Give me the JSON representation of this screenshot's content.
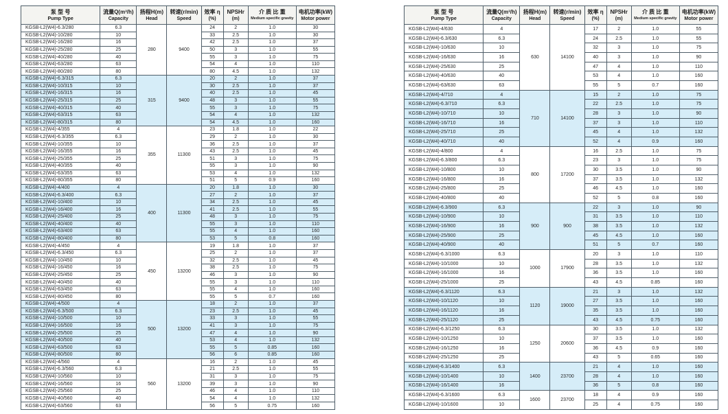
{
  "colors": {
    "shaded_row": "#d6edf8",
    "border": "#4e5d68",
    "header_bg": "#f4f4f1",
    "text": "#262626"
  },
  "columns": [
    {
      "zh": "泵 型 号",
      "en": "Pump Type"
    },
    {
      "zh": "流量Q(m³/h)",
      "en": "Capacity"
    },
    {
      "zh": "扬程H(m)",
      "en": "Head"
    },
    {
      "zh": "转速(r/min)",
      "en": "Speed"
    },
    {
      "zh": "效率 η",
      "en": "(%)"
    },
    {
      "zh": "NPSHr",
      "en": "(m)"
    },
    {
      "zh": "介 质 比 重",
      "en": "Medium specific gravity"
    },
    {
      "zh": "电机功率(kW)",
      "en": "Motor power"
    }
  ],
  "left_table": {
    "groups": [
      {
        "head": "280",
        "speed": "9400",
        "shaded": false,
        "rows": [
          [
            "KGSB-L2(W4)-6.3/280",
            "6.3",
            "24",
            "2",
            "1.0",
            "30"
          ],
          [
            "KGSB-L2(W4)-10/280",
            "10",
            "33",
            "2.5",
            "1.0",
            "30"
          ],
          [
            "KGSB-L2(W4)-16/280",
            "16",
            "42",
            "2.5",
            "1.0",
            "37"
          ],
          [
            "KGSB-L2(W4)-25/280",
            "25",
            "50",
            "3",
            "1.0",
            "55"
          ],
          [
            "KGSB-L2(W4)-40/280",
            "40",
            "55",
            "3",
            "1.0",
            "75"
          ],
          [
            "KGSB-L2(W4)-63/280",
            "63",
            "54",
            "4",
            "1.0",
            "110"
          ],
          [
            "KGSB-L2(W4)-80/280",
            "80",
            "80",
            "4.5",
            "1.0",
            "132"
          ]
        ]
      },
      {
        "head": "315",
        "speed": "9400",
        "shaded": true,
        "rows": [
          [
            "KGSB-L2(W4)-6.3/315",
            "6.3",
            "20",
            "2",
            "1.0",
            "37"
          ],
          [
            "KGSB-L2(W4)-10/315",
            "10",
            "30",
            "2.5",
            "1.0",
            "37"
          ],
          [
            "KGSB-L2(W4)-16/315",
            "16",
            "40",
            "2.5",
            "1.0",
            "45"
          ],
          [
            "KGSB-L2(W4)-25/315",
            "25",
            "48",
            "3",
            "1.0",
            "55"
          ],
          [
            "KGSB-L2(W4)-40/315",
            "40",
            "55",
            "3",
            "1.0",
            "75"
          ],
          [
            "KGSB-L2(W4)-63/315",
            "63",
            "54",
            "4",
            "1.0",
            "132"
          ],
          [
            "KGSB-L2(W4)-80/315",
            "80",
            "54",
            "4.5",
            "1.0",
            "160"
          ]
        ]
      },
      {
        "head": "355",
        "speed": "11300",
        "shaded": false,
        "rows": [
          [
            "KGSB-L2(W4)-4/355",
            "4",
            "23",
            "1.8",
            "1.0",
            "22"
          ],
          [
            "KGSB-L2(W4)-6.3/355",
            "6.3",
            "29",
            "2",
            "1.0",
            "30"
          ],
          [
            "KGSB-L2(W4)-10/355",
            "10",
            "36",
            "2.5",
            "1.0",
            "37"
          ],
          [
            "KGSB-L2(W4)-16/355",
            "16",
            "43",
            "2.5",
            "1.0",
            "45"
          ],
          [
            "KGSB-L2(W4)-25/355",
            "25",
            "51",
            "3",
            "1.0",
            "75"
          ],
          [
            "KGSB-L2(W4)-40/355",
            "40",
            "55",
            "3",
            "1.0",
            "90"
          ],
          [
            "KGSB-L2(W4)-63/355",
            "63",
            "53",
            "4",
            "1.0",
            "132"
          ],
          [
            "KGSB-L2(W4)-80/355",
            "80",
            "51",
            "5",
            "0.9",
            "160"
          ]
        ]
      },
      {
        "head": "400",
        "speed": "11300",
        "shaded": true,
        "rows": [
          [
            "KGSB-L2(W4)-4/400",
            "4",
            "20",
            "1.8",
            "1.0",
            "30"
          ],
          [
            "KGSB-L2(W4)-6.3/400",
            "6.3",
            "27",
            "2",
            "1.0",
            "37"
          ],
          [
            "KGSB-L2(W4)-10/400",
            "10",
            "34",
            "2.5",
            "1.0",
            "45"
          ],
          [
            "KGSB-L2(W4)-16/400",
            "16",
            "41",
            "2.5",
            "1.0",
            "55"
          ],
          [
            "KGSB-L2(W4)-25/400",
            "25",
            "48",
            "3",
            "1.0",
            "75"
          ],
          [
            "KGSB-L2(W4)-40/400",
            "40",
            "55",
            "3",
            "1.0",
            "110"
          ],
          [
            "KGSB-L2(W4)-63/400",
            "63",
            "55",
            "4",
            "1.0",
            "160"
          ],
          [
            "KGSB-L2(W4)-80/400",
            "80",
            "53",
            "5",
            "0.8",
            "160"
          ]
        ]
      },
      {
        "head": "450",
        "speed": "13200",
        "shaded": false,
        "rows": [
          [
            "KGSB-L2(W4)-4/450",
            "4",
            "19",
            "1.8",
            "1.0",
            "37"
          ],
          [
            "KGSB-L2(W4)-6.3/450",
            "6.3",
            "25",
            "2",
            "1.0",
            "37"
          ],
          [
            "KGSB-L2(W4)-10/450",
            "10",
            "32",
            "2.5",
            "1.0",
            "45"
          ],
          [
            "KGSB-L2(W4)-16/450",
            "16",
            "38",
            "2.5",
            "1.0",
            "75"
          ],
          [
            "KGSB-L2(W4)-25/450",
            "25",
            "46",
            "3",
            "1.0",
            "90"
          ],
          [
            "KGSB-L2(W4)-40/450",
            "40",
            "55",
            "3",
            "1.0",
            "110"
          ],
          [
            "KGSB-L2(W4)-63/450",
            "63",
            "55",
            "4",
            "1.0",
            "160"
          ],
          [
            "KGSB-L2(W4)-80/450",
            "80",
            "55",
            "5",
            "0.7",
            "160"
          ]
        ]
      },
      {
        "head": "500",
        "speed": "13200",
        "shaded": true,
        "rows": [
          [
            "KGSB-L2(W4)-4/500",
            "4",
            "18",
            "2",
            "1.0",
            "37"
          ],
          [
            "KGSB-L2(W4)-6.3/500",
            "6.3",
            "23",
            "2.5",
            "1.0",
            "45"
          ],
          [
            "KGSB-L2(W4)-10/500",
            "10",
            "33",
            "3",
            "1.0",
            "55"
          ],
          [
            "KGSB-L2(W4)-16/500",
            "16",
            "41",
            "3",
            "1.0",
            "75"
          ],
          [
            "KGSB-L2(W4)-25/500",
            "25",
            "47",
            "4",
            "1.0",
            "90"
          ],
          [
            "KGSB-L2(W4)-40/500",
            "40",
            "53",
            "4",
            "1.0",
            "132"
          ],
          [
            "KGSB-L2(W4)-63/500",
            "63",
            "55",
            "5",
            "0.85",
            "160"
          ],
          [
            "KGSB-L2(W4)-80/500",
            "80",
            "56",
            "6",
            "0.85",
            "160"
          ]
        ]
      },
      {
        "head": "560",
        "speed": "13200",
        "shaded": false,
        "rows": [
          [
            "KGSB-L2(W4)-4/560",
            "4",
            "16",
            "2",
            "1.0",
            "45"
          ],
          [
            "KGSB-L2(W4)-6.3/560",
            "6.3",
            "21",
            "2.5",
            "1.0",
            "55"
          ],
          [
            "KGSB-L2(W4)-10/560",
            "10",
            "31",
            "3",
            "1.0",
            "75"
          ],
          [
            "KGSB-L2(W4)-16/560",
            "16",
            "39",
            "3",
            "1.0",
            "90"
          ],
          [
            "KGSB-L2(W4)-25/560",
            "25",
            "46",
            "4",
            "1.0",
            "110"
          ],
          [
            "KGSB-L2(W4)-40/560",
            "40",
            "54",
            "4",
            "1.0",
            "132"
          ],
          [
            "KGSB-L2(W4)-63/560",
            "63",
            "56",
            "5",
            "0.75",
            "160"
          ]
        ]
      }
    ]
  },
  "right_table": {
    "groups": [
      {
        "head": "630",
        "speed": "14100",
        "shaded": false,
        "rows": [
          [
            "KGSB-L2(W4)-4/630",
            "4",
            "17",
            "2",
            "1.0",
            "55"
          ],
          [
            "KGSB-L2(W4)-6.3/630",
            "6.3",
            "24",
            "2.5",
            "1.0",
            "55"
          ],
          [
            "KGSB-L2(W4)-10/630",
            "10",
            "32",
            "3",
            "1.0",
            "75"
          ],
          [
            "KGSB-L2(W4)-16/630",
            "16",
            "40",
            "3",
            "1.0",
            "90"
          ],
          [
            "KGSB-L2(W4)-25/630",
            "25",
            "47",
            "4",
            "1.0",
            "110"
          ],
          [
            "KGSB-L2(W4)-40/630",
            "40",
            "53",
            "4",
            "1.0",
            "160"
          ],
          [
            "KGSB-L2(W4)-63/630",
            "63",
            "55",
            "5",
            "0.7",
            "160"
          ]
        ]
      },
      {
        "head": "710",
        "speed": "14100",
        "shaded": true,
        "rows": [
          [
            "KGSB-L2(W4)-4/710",
            "4",
            "15",
            "2",
            "1.0",
            "75"
          ],
          [
            "KGSB-L2(W4)-6.3/710",
            "6.3",
            "22",
            "2.5",
            "1.0",
            "75"
          ],
          [
            "KGSB-L2(W4)-10/710",
            "10",
            "28",
            "3",
            "1.0",
            "90"
          ],
          [
            "KGSB-L2(W4)-16/710",
            "16",
            "37",
            "3",
            "1.0",
            "110"
          ],
          [
            "KGSB-L2(W4)-25/710",
            "25",
            "45",
            "4",
            "1.0",
            "132"
          ],
          [
            "KGSB-L2(W4)-40/710",
            "40",
            "52",
            "4",
            "0.9",
            "160"
          ]
        ]
      },
      {
        "head": "800",
        "speed": "17200",
        "shaded": false,
        "rows": [
          [
            "KGSB-L2(W4)-4/800",
            "4",
            "16",
            "2.5",
            "1.0",
            "75"
          ],
          [
            "KGSB-L2(W4)-6.3/800",
            "6.3",
            "23",
            "3",
            "1.0",
            "75"
          ],
          [
            "KGSB-L2(W4)-10/800",
            "10",
            "30",
            "3.5",
            "1.0",
            "90"
          ],
          [
            "KGSB-L2(W4)-16/800",
            "16",
            "37",
            "3.5",
            "1.0",
            "132"
          ],
          [
            "KGSB-L2(W4)-25/800",
            "25",
            "46",
            "4.5",
            "1.0",
            "160"
          ],
          [
            "KGSB-L2(W4)-40/800",
            "40",
            "52",
            "5",
            "0.8",
            "160"
          ]
        ]
      },
      {
        "head": "900",
        "speed": "900",
        "shaded": true,
        "rows": [
          [
            "KGSB-L2(W4)-6.3/900",
            "6.3",
            "22",
            "3",
            "1.0",
            "90"
          ],
          [
            "KGSB-L2(W4)-10/900",
            "10",
            "31",
            "3.5",
            "1.0",
            "110"
          ],
          [
            "KGSB-L2(W4)-16/900",
            "16",
            "38",
            "3.5",
            "1.0",
            "132"
          ],
          [
            "KGSB-L2(W4)-25/900",
            "25",
            "45",
            "4.5",
            "1.0",
            "160"
          ],
          [
            "KGSB-L2(W4)-40/900",
            "40",
            "51",
            "5",
            "0.7",
            "160"
          ]
        ]
      },
      {
        "head": "1000",
        "speed": "17900",
        "shaded": false,
        "rows": [
          [
            "KGSB-L2(W4)-6.3/1000",
            "6.3",
            "20",
            "3",
            "1.0",
            "110"
          ],
          [
            "KGSB-L2(W4)-10/1000",
            "10",
            "28",
            "3.5",
            "1.0",
            "132"
          ],
          [
            "KGSB-L2(W4)-16/1000",
            "16",
            "36",
            "3.5",
            "1.0",
            "160"
          ],
          [
            "KGSB-L2(W4)-25/1000",
            "25",
            "43",
            "4.5",
            "0.85",
            "160"
          ]
        ]
      },
      {
        "head": "1120",
        "speed": "19000",
        "shaded": true,
        "rows": [
          [
            "KGSB-L2(W4)-6.3/1120",
            "6.3",
            "21",
            "3",
            "1.0",
            "132"
          ],
          [
            "KGSB-L2(W4)-10/1120",
            "10",
            "27",
            "3.5",
            "1.0",
            "160"
          ],
          [
            "KGSB-L2(W4)-16/1120",
            "16",
            "35",
            "3.5",
            "1.0",
            "160"
          ],
          [
            "KGSB-L2(W4)-25/1120",
            "25",
            "43",
            "4.5",
            "0.75",
            "160"
          ]
        ]
      },
      {
        "head": "1250",
        "speed": "20600",
        "shaded": false,
        "rows": [
          [
            "KGSB-L2(W4)-6.3/1250",
            "6.3",
            "30",
            "3.5",
            "1.0",
            "132"
          ],
          [
            "KGSB-L2(W4)-10/1250",
            "10",
            "37",
            "3.5",
            "1.0",
            "160"
          ],
          [
            "KGSB-L2(W4)-16/1250",
            "16",
            "36",
            "4.5",
            "0.9",
            "160"
          ],
          [
            "KGSB-L2(W4)-25/1250",
            "25",
            "43",
            "5",
            "0.65",
            "160"
          ]
        ]
      },
      {
        "head": "1400",
        "speed": "23700",
        "shaded": true,
        "rows": [
          [
            "KGSB-L2(W4)-6.3/1400",
            "6.3",
            "21",
            "4",
            "1.0",
            "160"
          ],
          [
            "KGSB-L2(W4)-10/1400",
            "10",
            "28",
            "4",
            "1.0",
            "160"
          ],
          [
            "KGSB-L2(W4)-16/1400",
            "16",
            "36",
            "5",
            "0.8",
            "160"
          ]
        ]
      },
      {
        "head": "1600",
        "speed": "23700",
        "shaded": false,
        "rows": [
          [
            "KGSB-L2(W4)-6.3/1600",
            "6.3",
            "18",
            "4",
            "0.9",
            "160"
          ],
          [
            "KGSB-L2(W4)-10/1600",
            "10",
            "25",
            "4",
            "0.75",
            "160"
          ]
        ]
      }
    ]
  }
}
